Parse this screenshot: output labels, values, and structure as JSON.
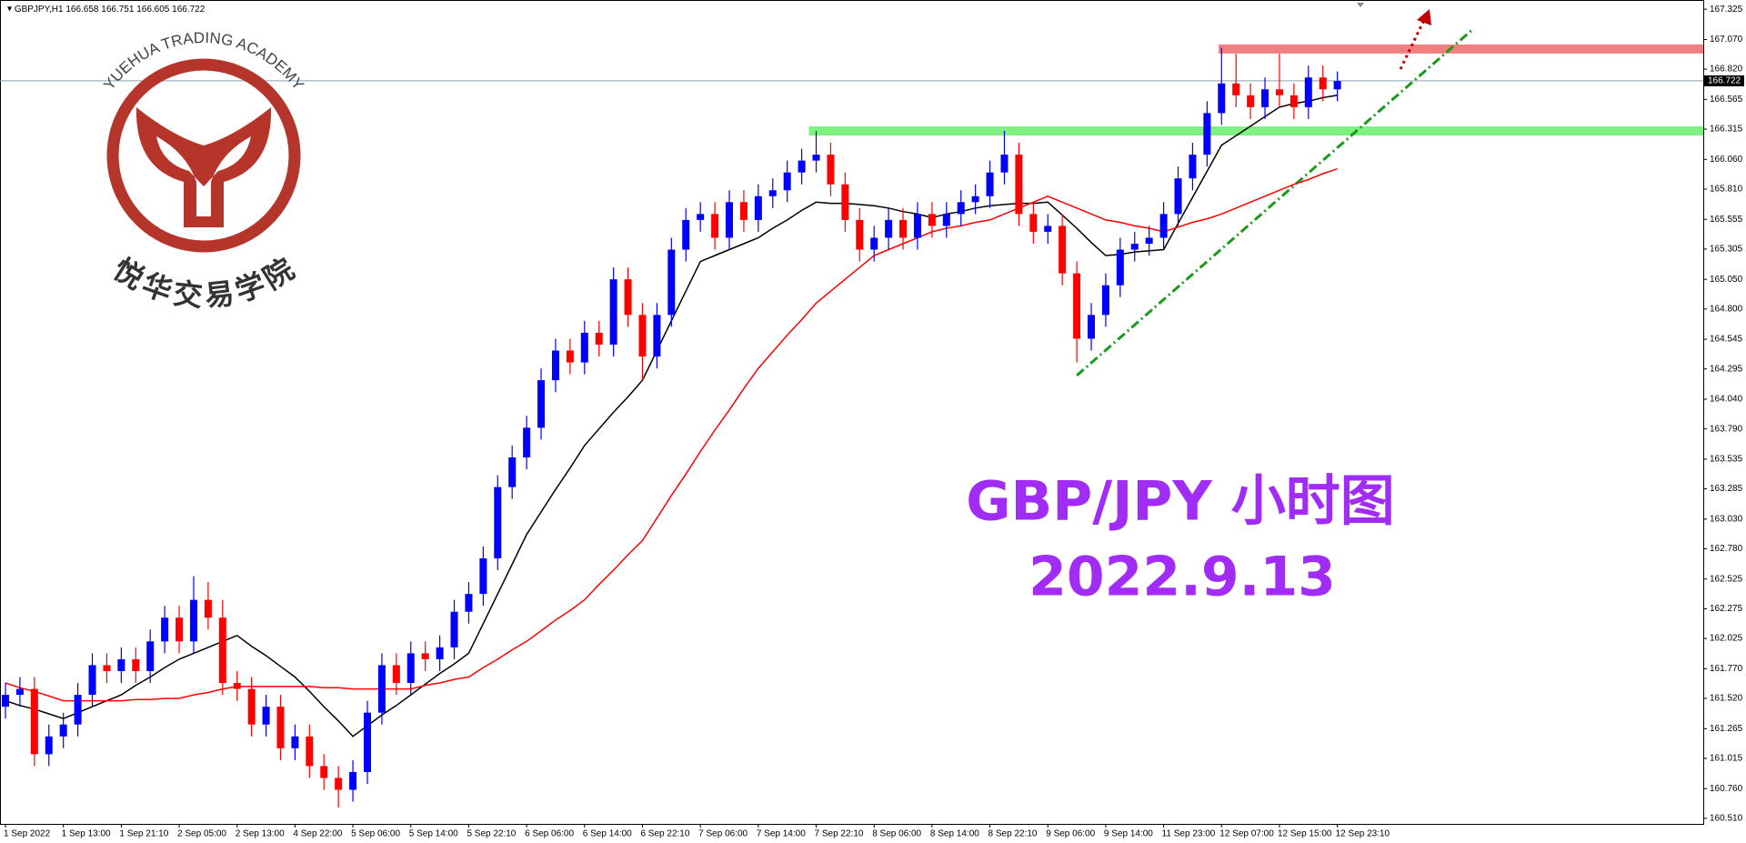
{
  "chart_data": {
    "type": "candlestick",
    "header": {
      "symbol": "GBPJPY,H1",
      "ohlc": [
        166.658,
        166.751,
        166.605,
        166.722
      ]
    },
    "logo": {
      "text_en": "YUEHUA TRADING ACADEMY",
      "text_zh": "悦华交易学院"
    },
    "annotation_title": "GBP/JPY 小时图",
    "annotation_date": "2022.9.13",
    "up_color": "#0000ff",
    "down_color": "#ff0000",
    "categories": [
      "1 Sep 2022",
      null,
      null,
      null,
      "1 Sep 13:00",
      null,
      null,
      null,
      "1 Sep 21:10",
      null,
      null,
      null,
      "2 Sep 05:00",
      null,
      null,
      null,
      "2 Sep 13:00",
      null,
      null,
      null,
      "4 Sep 22:00",
      null,
      null,
      null,
      "5 Sep 06:00",
      null,
      null,
      null,
      "5 Sep 14:00",
      null,
      null,
      null,
      "5 Sep 22:10",
      null,
      null,
      null,
      "6 Sep 06:00",
      null,
      null,
      null,
      "6 Sep 14:00",
      null,
      null,
      null,
      "6 Sep 22:10",
      null,
      null,
      null,
      "7 Sep 06:00",
      null,
      null,
      null,
      "7 Sep 14:00",
      null,
      null,
      null,
      "7 Sep 22:10",
      null,
      null,
      null,
      "8 Sep 06:00",
      null,
      null,
      null,
      "8 Sep 14:00",
      null,
      null,
      null,
      "8 Sep 22:10",
      null,
      null,
      null,
      "9 Sep 06:00",
      null,
      null,
      null,
      "9 Sep 14:00",
      null,
      null,
      null,
      "11 Sep 23:00",
      null,
      null,
      null,
      "12 Sep 07:00",
      null,
      null,
      null,
      "12 Sep 15:00",
      null,
      null,
      null,
      "12 Sep 23:10"
    ],
    "open": [
      161.45,
      161.55,
      161.6,
      161.05,
      161.2,
      161.3,
      161.55,
      161.8,
      161.75,
      161.85,
      161.75,
      162.0,
      162.2,
      162.0,
      162.35,
      162.2,
      161.65,
      161.6,
      161.3,
      161.45,
      161.1,
      161.2,
      160.95,
      160.85,
      160.75,
      160.9,
      161.4,
      161.8,
      161.65,
      161.9,
      161.85,
      161.95,
      162.25,
      162.4,
      162.7,
      163.3,
      163.55,
      163.8,
      164.2,
      164.45,
      164.35,
      164.6,
      164.5,
      165.05,
      164.75,
      164.4,
      164.75,
      165.3,
      165.55,
      165.6,
      165.4,
      165.7,
      165.55,
      165.75,
      165.8,
      165.95,
      166.05,
      166.1,
      165.85,
      165.55,
      165.3,
      165.4,
      165.55,
      165.4,
      165.6,
      165.5,
      165.6,
      165.7,
      165.75,
      165.95,
      166.1,
      165.6,
      165.45,
      165.5,
      165.1,
      164.55,
      164.75,
      165.0,
      165.3,
      165.35,
      165.4,
      165.6,
      165.9,
      166.1,
      166.45,
      166.7,
      166.6,
      166.5,
      166.65,
      166.6,
      166.5,
      166.75,
      166.65
    ],
    "high": [
      161.65,
      161.7,
      161.7,
      161.3,
      161.4,
      161.65,
      161.9,
      161.9,
      161.95,
      161.95,
      162.1,
      162.3,
      162.3,
      162.55,
      162.5,
      162.35,
      161.75,
      161.7,
      161.55,
      161.55,
      161.3,
      161.3,
      161.05,
      160.95,
      161.0,
      161.5,
      161.9,
      161.9,
      162.0,
      162.0,
      162.05,
      162.35,
      162.5,
      162.8,
      163.4,
      163.65,
      163.9,
      164.3,
      164.55,
      164.55,
      164.7,
      164.7,
      165.15,
      165.15,
      164.85,
      164.85,
      165.4,
      165.65,
      165.7,
      165.7,
      165.8,
      165.8,
      165.85,
      165.9,
      166.05,
      166.15,
      166.3,
      166.2,
      165.95,
      165.65,
      165.5,
      165.65,
      165.65,
      165.7,
      165.7,
      165.7,
      165.8,
      165.85,
      166.05,
      166.3,
      166.2,
      165.7,
      165.6,
      165.6,
      165.2,
      164.85,
      165.1,
      165.4,
      165.45,
      165.5,
      165.7,
      166.0,
      166.2,
      166.55,
      167.0,
      166.95,
      166.7,
      166.75,
      166.95,
      166.7,
      166.85,
      166.85,
      166.8
    ],
    "low": [
      161.35,
      161.45,
      160.95,
      160.95,
      161.1,
      161.2,
      161.45,
      161.65,
      161.65,
      161.65,
      161.65,
      161.9,
      161.9,
      161.9,
      162.1,
      161.55,
      161.5,
      161.2,
      161.2,
      161.0,
      161.0,
      160.85,
      160.75,
      160.6,
      160.65,
      160.8,
      161.3,
      161.55,
      161.55,
      161.75,
      161.75,
      161.85,
      162.15,
      162.3,
      162.6,
      163.2,
      163.45,
      163.7,
      164.1,
      164.25,
      164.25,
      164.4,
      164.4,
      164.65,
      164.2,
      164.3,
      164.65,
      165.2,
      165.45,
      165.3,
      165.3,
      165.45,
      165.45,
      165.65,
      165.7,
      165.85,
      165.95,
      165.75,
      165.45,
      165.2,
      165.2,
      165.3,
      165.3,
      165.3,
      165.4,
      165.4,
      165.5,
      165.6,
      165.65,
      165.85,
      165.5,
      165.35,
      165.35,
      165.0,
      164.35,
      164.45,
      164.65,
      164.9,
      165.2,
      165.25,
      165.3,
      165.5,
      165.8,
      166.0,
      166.35,
      166.5,
      166.4,
      166.4,
      166.5,
      166.4,
      166.4,
      166.55,
      166.55
    ],
    "close": [
      161.55,
      161.6,
      161.05,
      161.2,
      161.3,
      161.55,
      161.8,
      161.75,
      161.85,
      161.75,
      162.0,
      162.2,
      162.0,
      162.35,
      162.2,
      161.65,
      161.6,
      161.3,
      161.45,
      161.1,
      161.2,
      160.95,
      160.85,
      160.75,
      160.9,
      161.4,
      161.8,
      161.65,
      161.9,
      161.85,
      161.95,
      162.25,
      162.4,
      162.7,
      163.3,
      163.55,
      163.8,
      164.2,
      164.45,
      164.35,
      164.6,
      164.5,
      165.05,
      164.75,
      164.4,
      164.75,
      165.3,
      165.55,
      165.6,
      165.4,
      165.7,
      165.55,
      165.75,
      165.8,
      165.95,
      166.05,
      166.1,
      165.85,
      165.55,
      165.3,
      165.4,
      165.55,
      165.4,
      165.6,
      165.5,
      165.6,
      165.7,
      165.75,
      165.95,
      166.1,
      165.6,
      165.45,
      165.5,
      165.1,
      164.55,
      164.75,
      165.0,
      165.3,
      165.35,
      165.4,
      165.6,
      165.9,
      166.1,
      166.45,
      166.7,
      166.6,
      166.5,
      166.65,
      166.6,
      166.5,
      166.75,
      166.65,
      166.72
    ],
    "moving_averages": [
      {
        "color": "#000000",
        "values": [
          161.5,
          161.46,
          161.43,
          161.39,
          161.35,
          161.4,
          161.45,
          161.5,
          161.55,
          161.63,
          161.7,
          161.78,
          161.85,
          161.9,
          161.95,
          162.0,
          162.05,
          161.96,
          161.88,
          161.79,
          161.7,
          161.58,
          161.45,
          161.33,
          161.2,
          161.29,
          161.38,
          161.46,
          161.55,
          161.64,
          161.73,
          161.81,
          161.9,
          162.15,
          162.4,
          162.65,
          162.9,
          163.09,
          163.28,
          163.46,
          163.65,
          163.79,
          163.93,
          164.06,
          164.2,
          164.45,
          164.7,
          164.95,
          165.2,
          165.25,
          165.3,
          165.35,
          165.4,
          165.48,
          165.55,
          165.63,
          165.7,
          165.69,
          165.69,
          165.68,
          165.67,
          165.65,
          165.62,
          165.6,
          165.57,
          165.6,
          165.62,
          165.65,
          165.67,
          165.68,
          165.69,
          165.69,
          165.7,
          165.59,
          165.48,
          165.36,
          165.25,
          165.26,
          165.28,
          165.29,
          165.3,
          165.52,
          165.74,
          165.96,
          166.18,
          166.26,
          166.34,
          166.42,
          166.5,
          166.53,
          166.55,
          166.58,
          166.6
        ]
      },
      {
        "color": "#ff0000",
        "values": [
          161.65,
          161.61,
          161.58,
          161.54,
          161.5,
          161.5,
          161.5,
          161.5,
          161.5,
          161.51,
          161.51,
          161.52,
          161.52,
          161.55,
          161.57,
          161.6,
          161.62,
          161.62,
          161.62,
          161.62,
          161.62,
          161.62,
          161.61,
          161.61,
          161.6,
          161.6,
          161.6,
          161.6,
          161.6,
          161.63,
          161.65,
          161.68,
          161.7,
          161.78,
          161.85,
          161.93,
          162.0,
          162.09,
          162.18,
          162.26,
          162.35,
          162.48,
          162.6,
          162.73,
          162.85,
          163.04,
          163.23,
          163.41,
          163.6,
          163.78,
          163.95,
          164.13,
          164.3,
          164.44,
          164.58,
          164.71,
          164.85,
          164.95,
          165.05,
          165.15,
          165.25,
          165.3,
          165.35,
          165.4,
          165.45,
          165.48,
          165.5,
          165.53,
          165.55,
          165.6,
          165.65,
          165.7,
          165.75,
          165.7,
          165.65,
          165.6,
          165.55,
          165.53,
          165.5,
          165.48,
          165.45,
          165.49,
          165.53,
          165.56,
          165.6,
          165.65,
          165.7,
          165.75,
          165.8,
          165.85,
          165.89,
          165.94,
          165.98
        ]
      }
    ],
    "levels": [
      {
        "value": 166.99,
        "from": 83.8,
        "color": "#f08080"
      },
      {
        "value": 166.3,
        "from": 55.5,
        "color": "#80f080"
      }
    ],
    "trendline": {
      "x": [
        74,
        101.3
      ],
      "y": [
        164.24,
        167.15
      ],
      "color": "#1a9a1a"
    },
    "current_price": 166.722,
    "ylim": [
      160.463,
      167.372
    ],
    "yticks": [
      167.325,
      {
        "value": 167.07,
        "label": "167.070"
      },
      {
        "value": 166.82,
        "label": "166.820"
      },
      166.565,
      166.315,
      {
        "value": 166.06,
        "label": "166.060"
      },
      {
        "value": 165.81,
        "label": "165.810"
      },
      165.555,
      165.305,
      {
        "value": 165.05,
        "label": "165.050"
      },
      {
        "value": 164.8,
        "label": "164.800"
      },
      164.545,
      164.295,
      {
        "value": 164.04,
        "label": "164.040"
      },
      {
        "value": 163.79,
        "label": "163.790"
      },
      163.535,
      163.285,
      {
        "value": 163.03,
        "label": "163.030"
      },
      {
        "value": 162.78,
        "label": "162.780"
      },
      162.525,
      162.275,
      162.025,
      {
        "value": 161.77,
        "label": "161.770"
      },
      {
        "value": 161.52,
        "label": "161.520"
      },
      161.265,
      161.015,
      {
        "value": 160.76,
        "label": "160.760"
      },
      {
        "value": 160.51,
        "label": "160.510"
      }
    ]
  }
}
